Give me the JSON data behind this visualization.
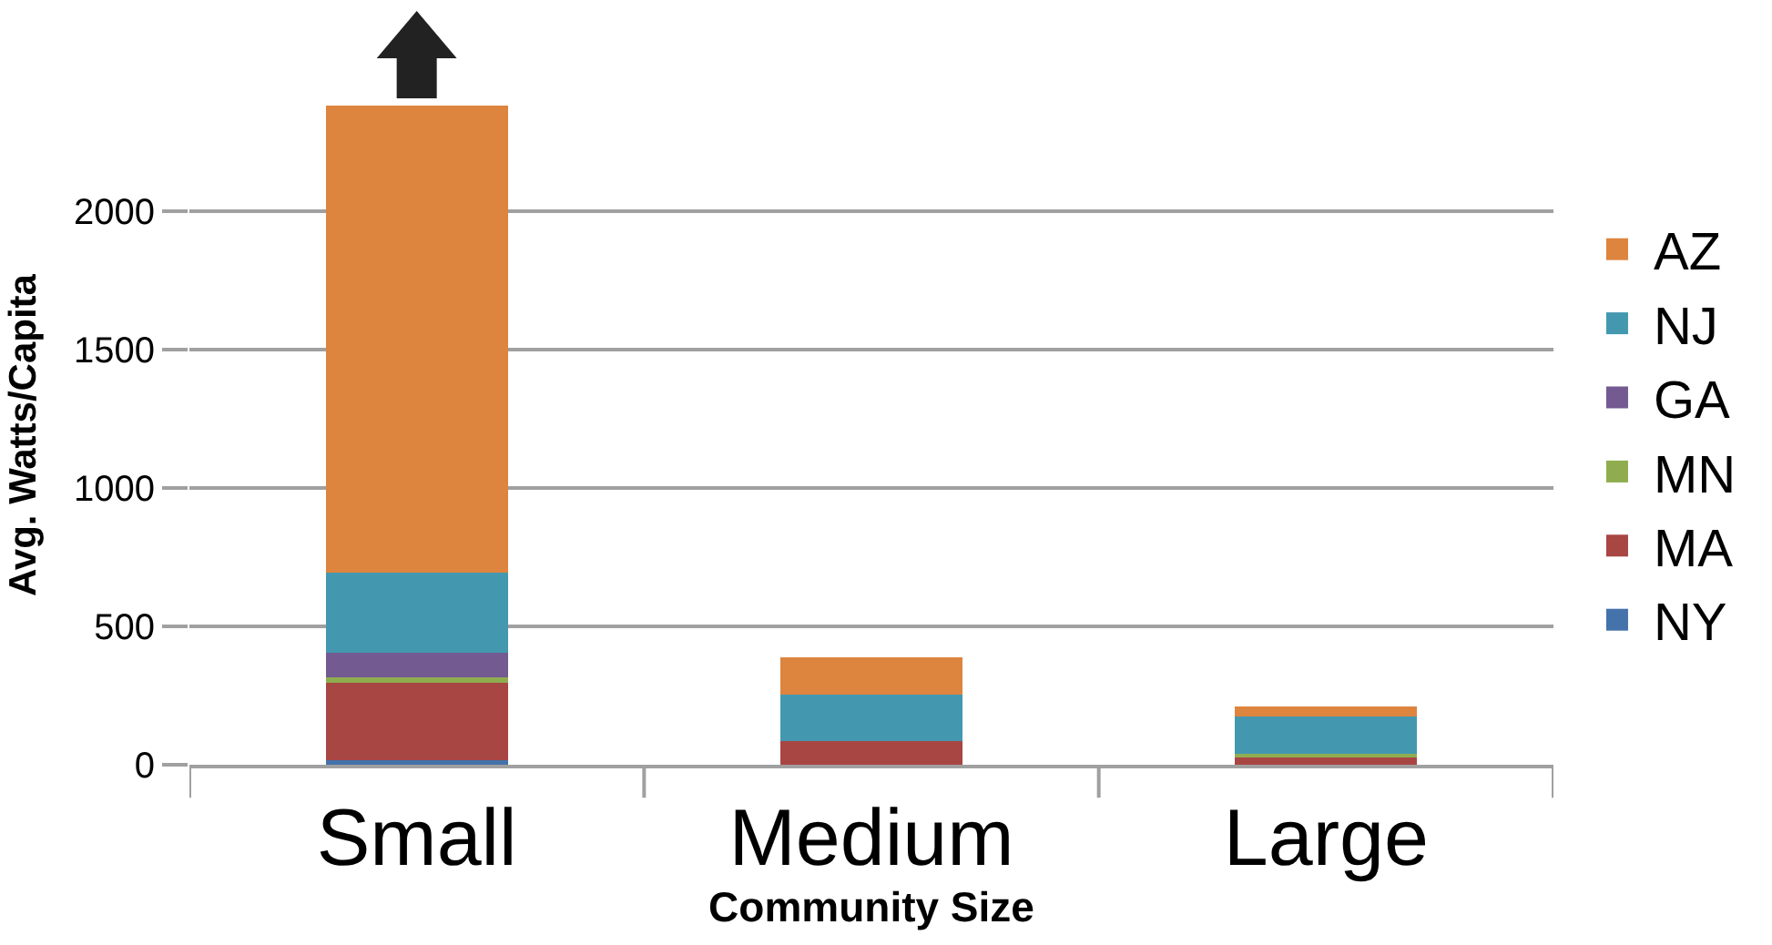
{
  "chart_data": {
    "type": "bar",
    "stacked": true,
    "xlabel": "Community Size",
    "ylabel": "Avg. Watts/Capita",
    "categories": [
      "Small",
      "Medium",
      "Large"
    ],
    "series": [
      {
        "name": "NY",
        "color": "#4472aa",
        "values": [
          15,
          null,
          null
        ]
      },
      {
        "name": "MA",
        "color": "#a84644",
        "values": [
          280,
          85,
          25
        ]
      },
      {
        "name": "MN",
        "color": "#8fad4f",
        "values": [
          20,
          0,
          14
        ]
      },
      {
        "name": "GA",
        "color": "#735a91",
        "values": [
          88,
          0,
          null
        ]
      },
      {
        "name": "NJ",
        "color": "#4398b0",
        "values": [
          290,
          168,
          136
        ]
      },
      {
        "name": "AZ",
        "color": "#dd843e",
        "values": [
          1688,
          136,
          37
        ]
      }
    ],
    "ylim": [
      0,
      2380
    ],
    "yticks": [
      0,
      500,
      1000,
      1500,
      2000
    ],
    "grid": "y",
    "legend": "right"
  }
}
